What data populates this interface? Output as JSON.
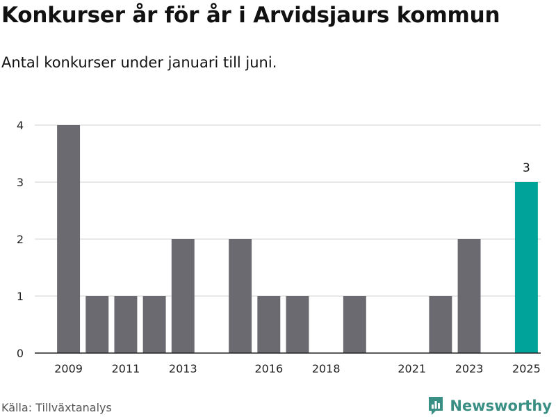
{
  "header": {
    "title": "Konkurser år för år i Arvidsjaurs kommun",
    "subtitle": "Antal konkurser under januari till juni."
  },
  "footer": {
    "source": "Källa: Tillväxtanalys",
    "brand": "Newsworthy",
    "brand_icon": "bar-chart-speech-icon"
  },
  "colors": {
    "bar": "#6b6a70",
    "highlight": "#00a399",
    "grid": "#d9d9d9",
    "axis": "#222222",
    "brand": "#3a8f84"
  },
  "chart_data": {
    "type": "bar",
    "title": "",
    "xlabel": "",
    "ylabel": "",
    "x": [
      2009,
      2010,
      2011,
      2012,
      2013,
      2014,
      2015,
      2016,
      2017,
      2018,
      2019,
      2020,
      2021,
      2022,
      2023,
      2024,
      2025
    ],
    "values": [
      4,
      1,
      1,
      1,
      2,
      0,
      2,
      1,
      1,
      0,
      1,
      0,
      0,
      1,
      2,
      0,
      3
    ],
    "x_ticks": [
      2009,
      2011,
      2013,
      2016,
      2018,
      2021,
      2023,
      2025
    ],
    "y_ticks": [
      0,
      1,
      2,
      3,
      4
    ],
    "ylim": [
      0,
      4
    ],
    "highlight": 2025,
    "data_labels": [
      {
        "x": 2025,
        "label": "3"
      }
    ],
    "grid": true,
    "legend": "none"
  }
}
